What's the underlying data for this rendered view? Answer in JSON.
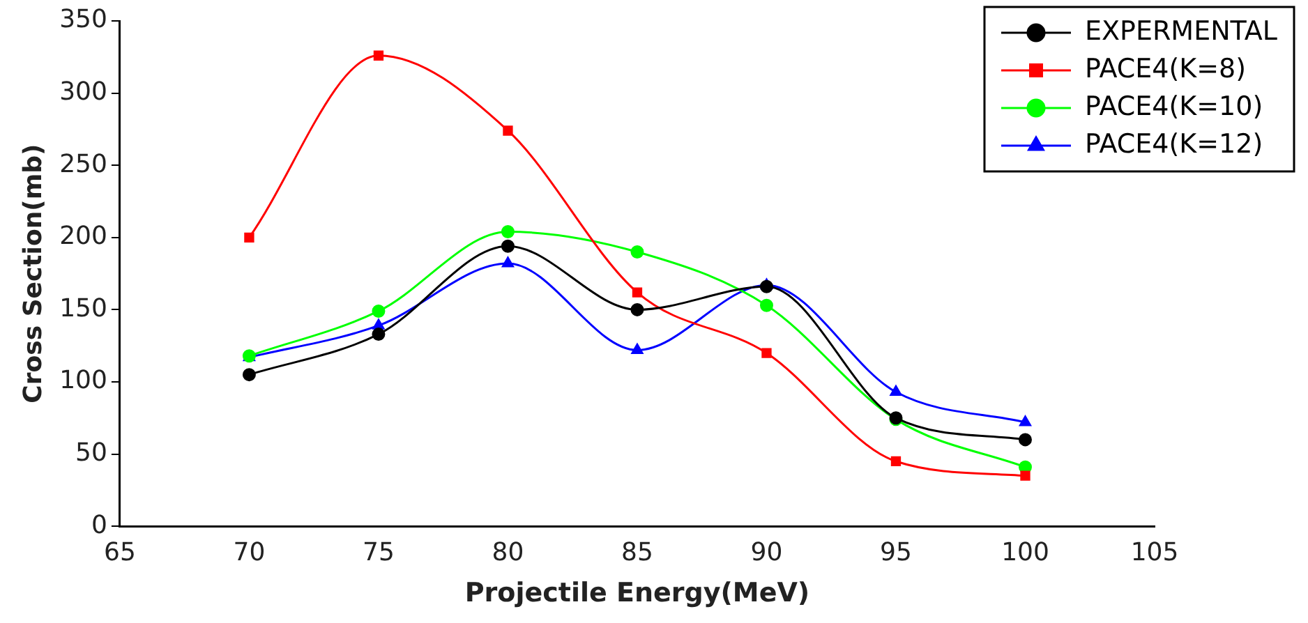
{
  "chart_data": {
    "type": "line",
    "xlabel": "Projectile Energy(MeV)",
    "ylabel": "Cross Section(mb)",
    "x": [
      70,
      75,
      80,
      85,
      90,
      95,
      100
    ],
    "series": [
      {
        "name": "EXPERMENTAL",
        "color": "#000000",
        "marker": "circle",
        "values": [
          105,
          133,
          194,
          150,
          166,
          75,
          60
        ]
      },
      {
        "name": "PACE4(K=8)",
        "color": "#ff0000",
        "marker": "square",
        "values": [
          200,
          326,
          274,
          162,
          120,
          45,
          35
        ]
      },
      {
        "name": "PACE4(K=10)",
        "color": "#00ff00",
        "marker": "circle",
        "values": [
          118,
          149,
          204,
          190,
          153,
          74,
          41
        ]
      },
      {
        "name": "PACE4(K=12)",
        "color": "#0000ff",
        "marker": "triangle",
        "values": [
          117,
          139,
          182,
          122,
          167,
          93,
          72
        ]
      }
    ],
    "xlim": [
      65,
      105
    ],
    "xticks": [
      65,
      70,
      75,
      80,
      85,
      90,
      95,
      100,
      105
    ],
    "ylim": [
      0,
      350
    ],
    "yticks": [
      0,
      50,
      100,
      150,
      200,
      250,
      300,
      350
    ],
    "grid": false,
    "legend": "top right"
  }
}
